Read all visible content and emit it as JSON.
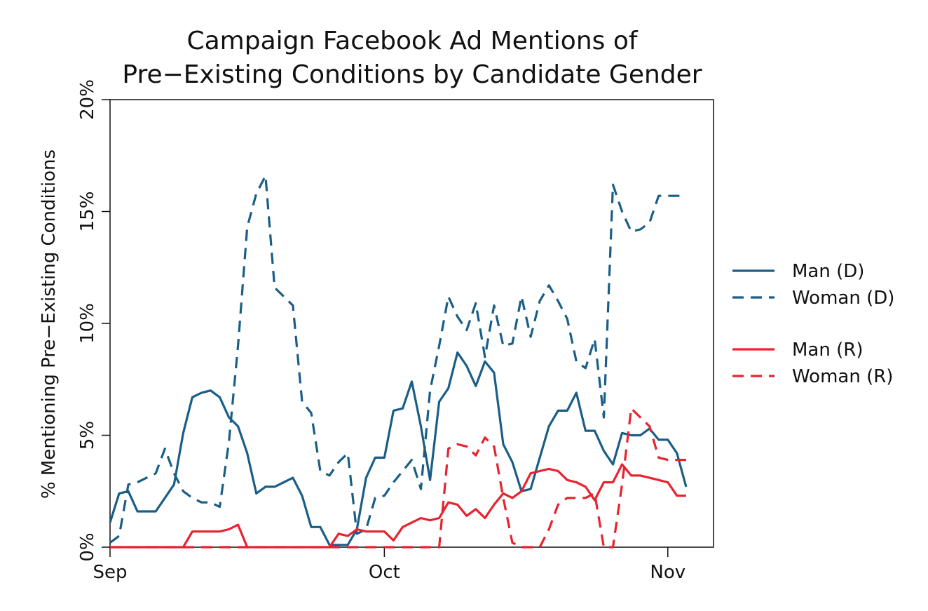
{
  "chart_data": {
    "type": "line",
    "title_lines": [
      "Campaign Facebook Ad Mentions of",
      "Pre−Existing Conditions by Candidate Gender"
    ],
    "xlabel": "",
    "ylabel": "% Mentioning Pre−Existing Conditions",
    "x_ticks": [
      "Sep",
      "Oct",
      "Nov"
    ],
    "x_tick_days": [
      0,
      30,
      61
    ],
    "x_range_days": [
      0,
      66
    ],
    "ylim": [
      0,
      20
    ],
    "y_ticks": [
      0,
      5,
      10,
      15,
      20
    ],
    "y_tick_labels": [
      "0%",
      "5%",
      "10%",
      "15%",
      "20%"
    ],
    "grid": false,
    "legend_position": "right",
    "series": [
      {
        "name": "Man (D)",
        "color": "#1a5e87",
        "dash": "solid",
        "x": [
          0,
          1,
          2,
          3,
          4,
          5,
          6,
          7,
          8,
          9,
          10,
          11,
          12,
          13,
          14,
          15,
          16,
          17,
          18,
          19,
          20,
          21,
          22,
          23,
          24,
          25,
          26,
          27,
          28,
          29,
          30,
          31,
          32,
          33,
          34,
          35,
          36,
          37,
          38,
          39,
          40,
          41,
          42,
          43,
          44,
          45,
          46,
          47,
          48,
          49,
          50,
          51,
          52,
          53,
          54,
          55,
          56,
          57,
          58,
          59,
          60,
          61,
          62,
          63
        ],
        "y": [
          1.1,
          2.4,
          2.5,
          1.6,
          1.6,
          1.6,
          2.2,
          2.8,
          5.1,
          6.7,
          6.9,
          7.0,
          6.7,
          5.8,
          5.4,
          4.2,
          2.4,
          2.7,
          2.7,
          2.9,
          3.1,
          2.3,
          0.9,
          0.9,
          0.1,
          0.1,
          0.1,
          0.8,
          3.1,
          4.0,
          4.0,
          6.1,
          6.2,
          7.4,
          5.4,
          3.0,
          6.5,
          7.1,
          8.7,
          8.1,
          7.2,
          8.3,
          7.8,
          4.6,
          3.8,
          2.5,
          2.6,
          4.0,
          5.4,
          6.1,
          6.1,
          6.9,
          5.2,
          5.2,
          4.3,
          3.7,
          5.1,
          5.0,
          5.0,
          5.3,
          4.8,
          4.8,
          4.2,
          2.7
        ]
      },
      {
        "name": "Woman (D)",
        "color": "#1a5e87",
        "dash": "dashed",
        "x": [
          0,
          1,
          2,
          3,
          4,
          5,
          6,
          7,
          8,
          9,
          10,
          11,
          12,
          13,
          14,
          15,
          16,
          17,
          18,
          19,
          20,
          21,
          22,
          23,
          24,
          25,
          26,
          27,
          28,
          29,
          30,
          31,
          32,
          33,
          34,
          35,
          36,
          37,
          38,
          39,
          40,
          41,
          42,
          43,
          44,
          45,
          46,
          47,
          48,
          49,
          50,
          51,
          52,
          53,
          54,
          55,
          56,
          57,
          58,
          59,
          60,
          61,
          62,
          63
        ],
        "y": [
          0.2,
          0.5,
          2.8,
          2.9,
          3.1,
          3.3,
          4.4,
          3.3,
          2.5,
          2.2,
          2.0,
          2.0,
          1.8,
          4.7,
          9.0,
          14.3,
          15.8,
          16.6,
          11.6,
          11.2,
          10.8,
          6.5,
          6.0,
          3.4,
          3.2,
          3.8,
          4.2,
          0.6,
          0.8,
          2.2,
          2.3,
          2.9,
          3.4,
          3.9,
          2.6,
          7.0,
          9.0,
          11.2,
          10.3,
          9.7,
          10.9,
          8.5,
          10.8,
          9.0,
          9.1,
          11.2,
          9.4,
          11.0,
          11.7,
          11.0,
          10.2,
          8.3,
          8.0,
          9.3,
          5.8,
          16.2,
          15.0,
          14.1,
          14.2,
          14.5,
          15.7,
          15.7,
          15.7,
          15.7
        ]
      },
      {
        "name": "Man (R)",
        "color": "#e8222e",
        "dash": "solid",
        "x": [
          0,
          1,
          2,
          3,
          4,
          5,
          6,
          7,
          8,
          9,
          10,
          11,
          12,
          13,
          14,
          15,
          16,
          17,
          18,
          19,
          20,
          21,
          22,
          23,
          24,
          25,
          26,
          27,
          28,
          29,
          30,
          31,
          32,
          33,
          34,
          35,
          36,
          37,
          38,
          39,
          40,
          41,
          42,
          43,
          44,
          45,
          46,
          47,
          48,
          49,
          50,
          51,
          52,
          53,
          54,
          55,
          56,
          57,
          58,
          59,
          60,
          61,
          62,
          63
        ],
        "y": [
          0,
          0,
          0,
          0,
          0,
          0,
          0,
          0,
          0,
          0.7,
          0.7,
          0.7,
          0.7,
          0.8,
          1.0,
          0,
          0,
          0,
          0,
          0,
          0,
          0,
          0,
          0,
          0,
          0.6,
          0.5,
          0.8,
          0.7,
          0.7,
          0.7,
          0.3,
          0.9,
          1.1,
          1.3,
          1.2,
          1.3,
          2.0,
          1.9,
          1.4,
          1.7,
          1.3,
          1.9,
          2.4,
          2.2,
          2.5,
          3.3,
          3.4,
          3.5,
          3.4,
          3.0,
          2.9,
          2.7,
          2.1,
          2.9,
          2.9,
          3.7,
          3.2,
          3.2,
          3.1,
          3.0,
          2.9,
          2.3,
          2.3
        ]
      },
      {
        "name": "Woman (R)",
        "color": "#e8222e",
        "dash": "dashed",
        "x": [
          0,
          1,
          2,
          3,
          4,
          5,
          6,
          7,
          8,
          9,
          10,
          11,
          12,
          13,
          14,
          15,
          16,
          17,
          18,
          19,
          20,
          21,
          22,
          23,
          24,
          25,
          26,
          27,
          28,
          29,
          30,
          31,
          32,
          33,
          34,
          35,
          36,
          37,
          38,
          39,
          40,
          41,
          42,
          43,
          44,
          45,
          46,
          47,
          48,
          49,
          50,
          51,
          52,
          53,
          54,
          55,
          56,
          57,
          58,
          59,
          60,
          61,
          62,
          63
        ],
        "y": [
          0,
          0,
          0,
          0,
          0,
          0,
          0,
          0,
          0,
          0,
          0,
          0,
          0,
          0,
          0,
          0,
          0,
          0,
          0,
          0,
          0,
          0,
          0,
          0,
          0,
          0,
          0,
          0,
          0,
          0,
          0,
          0,
          0,
          0,
          0,
          0,
          0,
          4.4,
          4.6,
          4.5,
          4.1,
          4.9,
          4.5,
          2.2,
          0.2,
          0,
          0,
          0,
          0.8,
          1.9,
          2.2,
          2.2,
          2.2,
          2.4,
          0,
          0,
          2.8,
          6.2,
          5.8,
          5.4,
          4.0,
          3.9,
          3.9,
          3.9
        ]
      }
    ]
  }
}
